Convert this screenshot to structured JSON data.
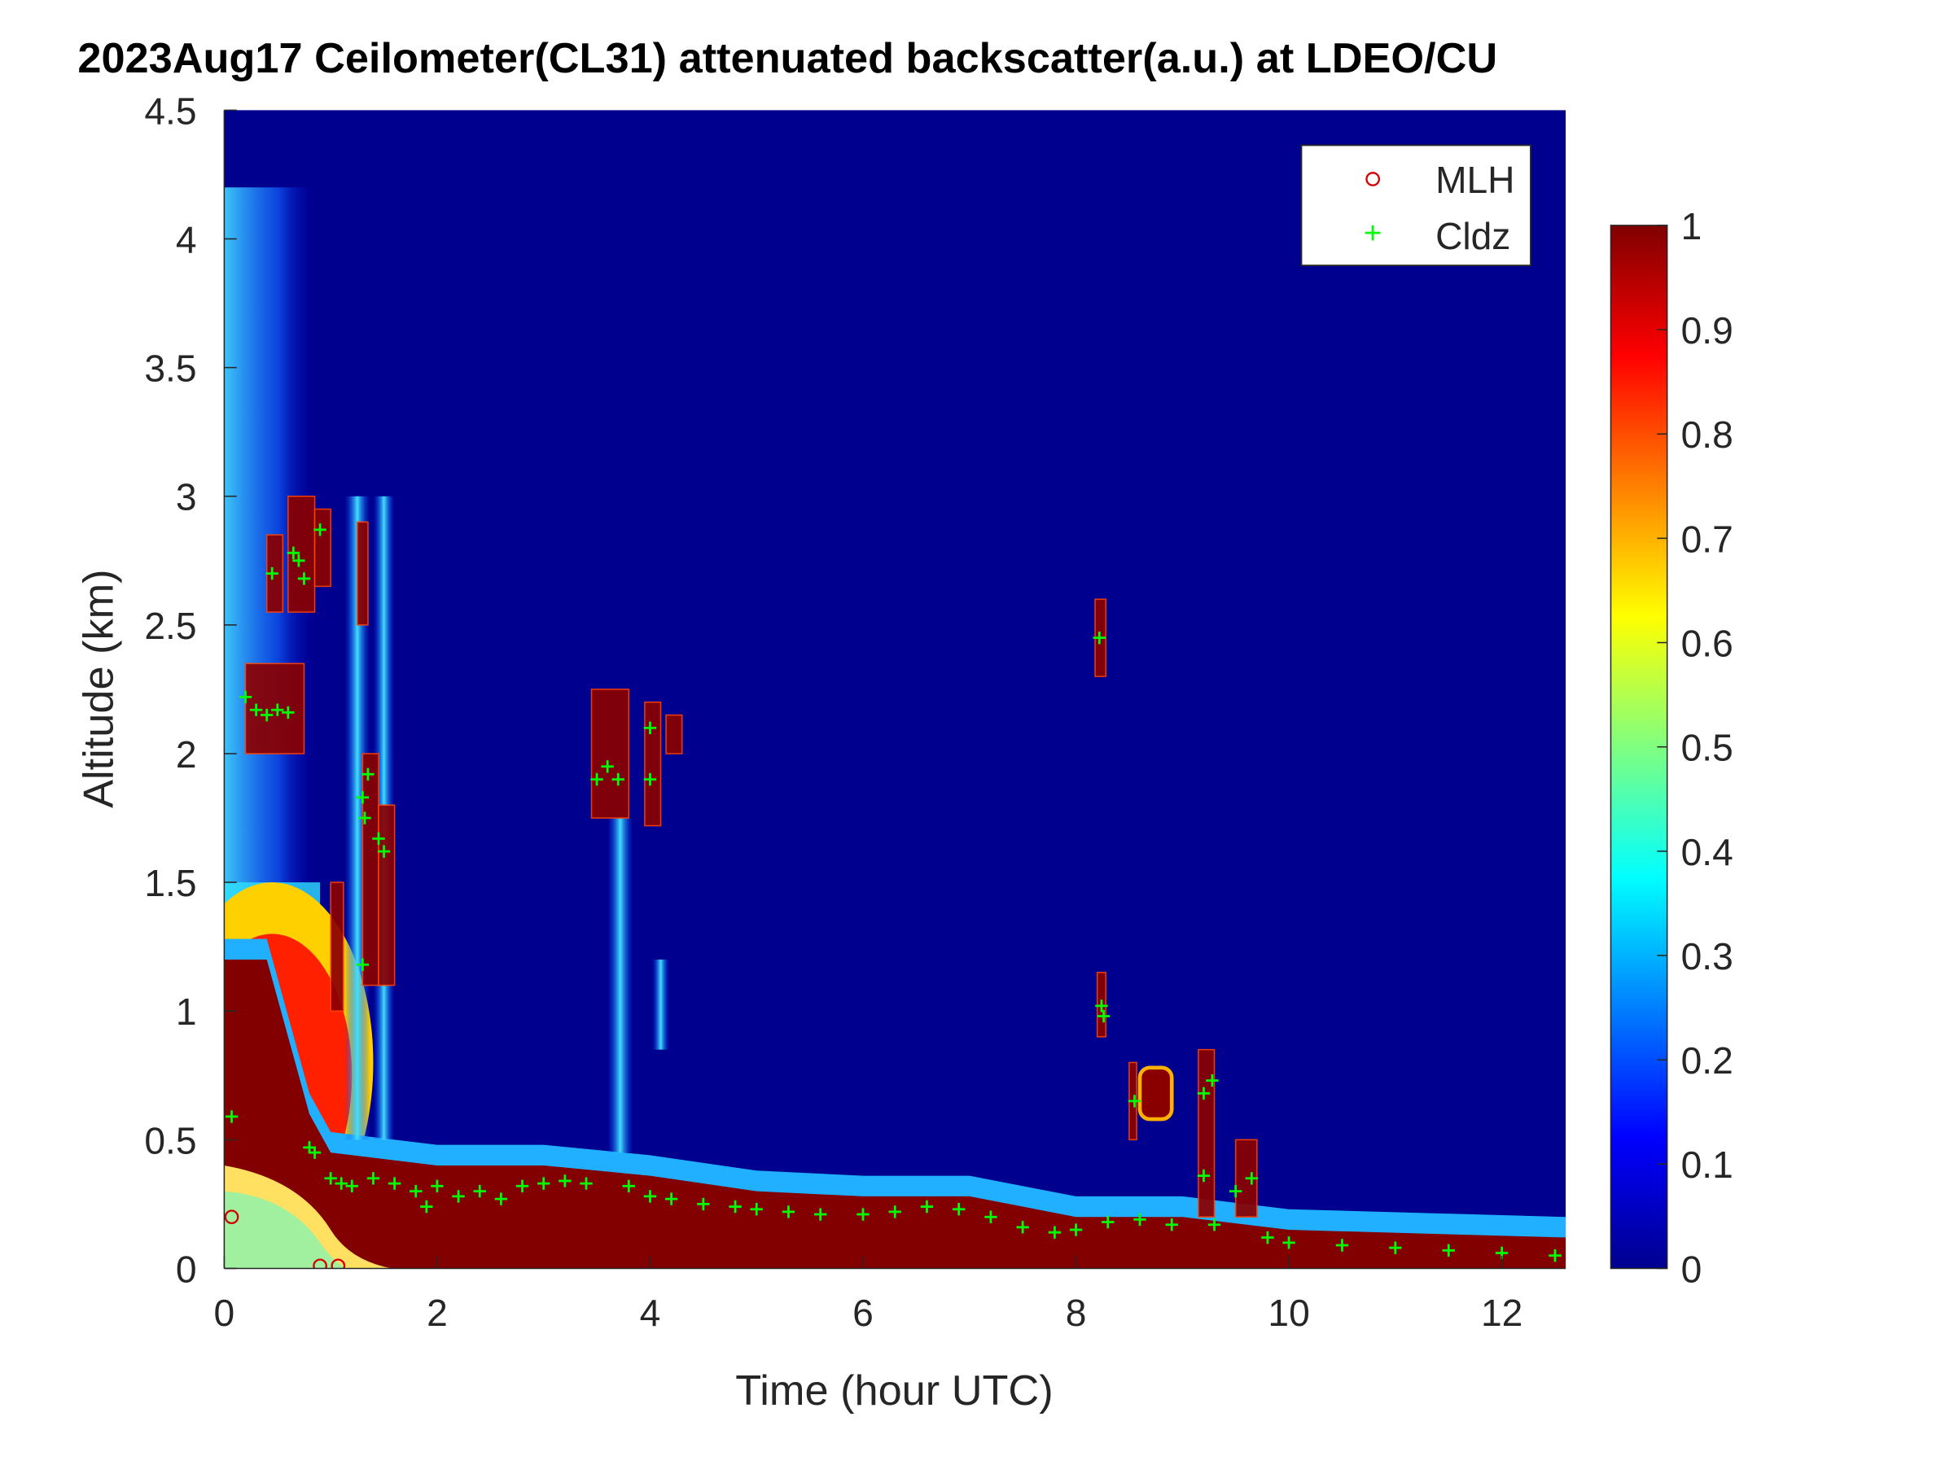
{
  "chart_data": {
    "type": "heatmap",
    "title": "2023Aug17 Ceilometer(CL31) attenuated backscatter(a.u.) at LDEO/CU",
    "xlabel": "Time (hour UTC)",
    "ylabel": "Altitude (km)",
    "xlim": [
      0,
      12.6
    ],
    "ylim": [
      0,
      4.5
    ],
    "xticks": [
      "0",
      "2",
      "4",
      "6",
      "8",
      "10",
      "12"
    ],
    "xtick_values": [
      0,
      2,
      4,
      6,
      8,
      10,
      12
    ],
    "yticks": [
      "0",
      "0.5",
      "1",
      "1.5",
      "2",
      "2.5",
      "3",
      "3.5",
      "4",
      "4.5"
    ],
    "ytick_values": [
      0,
      0.5,
      1,
      1.5,
      2,
      2.5,
      3,
      3.5,
      4,
      4.5
    ],
    "colormap": "jet",
    "colorbar": {
      "range": [
        0,
        1
      ],
      "ticks": [
        "0",
        "0.1",
        "0.2",
        "0.3",
        "0.4",
        "0.5",
        "0.6",
        "0.7",
        "0.8",
        "0.9",
        "1"
      ],
      "tick_values": [
        0,
        0.1,
        0.2,
        0.3,
        0.4,
        0.5,
        0.6,
        0.7,
        0.8,
        0.9,
        1
      ]
    },
    "legend": {
      "placement": "top-right",
      "entries": [
        "MLH",
        "Cldz"
      ]
    },
    "colors": {
      "MLH": "#d40000",
      "Cldz": "#00ff00",
      "background": "#00008f"
    },
    "series": [
      {
        "name": "MLH",
        "marker": "circle",
        "points": [
          [
            0.07,
            0.2
          ],
          [
            0.9,
            0.01
          ],
          [
            1.07,
            0.01
          ]
        ]
      },
      {
        "name": "Cldz",
        "marker": "plus",
        "points": [
          [
            0.07,
            0.59
          ],
          [
            0.2,
            2.22
          ],
          [
            0.3,
            2.17
          ],
          [
            0.4,
            2.15
          ],
          [
            0.5,
            2.17
          ],
          [
            0.6,
            2.16
          ],
          [
            0.45,
            2.7
          ],
          [
            0.65,
            2.78
          ],
          [
            0.7,
            2.75
          ],
          [
            0.75,
            2.68
          ],
          [
            0.9,
            2.87
          ],
          [
            0.8,
            0.47
          ],
          [
            0.85,
            0.45
          ],
          [
            1.0,
            0.35
          ],
          [
            1.1,
            0.33
          ],
          [
            1.2,
            0.32
          ],
          [
            1.3,
            1.83
          ],
          [
            1.32,
            1.75
          ],
          [
            1.35,
            1.92
          ],
          [
            1.45,
            1.67
          ],
          [
            1.5,
            1.62
          ],
          [
            1.3,
            1.18
          ],
          [
            1.4,
            0.35
          ],
          [
            1.6,
            0.33
          ],
          [
            1.8,
            0.3
          ],
          [
            1.9,
            0.24
          ],
          [
            2.0,
            0.32
          ],
          [
            2.2,
            0.28
          ],
          [
            2.4,
            0.3
          ],
          [
            2.6,
            0.27
          ],
          [
            2.8,
            0.32
          ],
          [
            3.0,
            0.33
          ],
          [
            3.2,
            0.34
          ],
          [
            3.4,
            0.33
          ],
          [
            3.5,
            1.9
          ],
          [
            3.6,
            1.95
          ],
          [
            3.7,
            1.9
          ],
          [
            3.8,
            0.32
          ],
          [
            4.0,
            0.28
          ],
          [
            4.0,
            2.1
          ],
          [
            4.0,
            1.9
          ],
          [
            4.2,
            0.27
          ],
          [
            4.5,
            0.25
          ],
          [
            4.8,
            0.24
          ],
          [
            5.0,
            0.23
          ],
          [
            5.3,
            0.22
          ],
          [
            5.6,
            0.21
          ],
          [
            6.0,
            0.21
          ],
          [
            6.3,
            0.22
          ],
          [
            6.6,
            0.24
          ],
          [
            6.9,
            0.23
          ],
          [
            7.2,
            0.2
          ],
          [
            7.5,
            0.16
          ],
          [
            7.8,
            0.14
          ],
          [
            8.0,
            0.15
          ],
          [
            8.22,
            2.45
          ],
          [
            8.24,
            1.02
          ],
          [
            8.26,
            0.98
          ],
          [
            8.3,
            0.18
          ],
          [
            8.55,
            0.65
          ],
          [
            8.6,
            0.19
          ],
          [
            8.9,
            0.17
          ],
          [
            9.2,
            0.68
          ],
          [
            9.28,
            0.73
          ],
          [
            9.2,
            0.36
          ],
          [
            9.3,
            0.17
          ],
          [
            9.5,
            0.3
          ],
          [
            9.65,
            0.35
          ],
          [
            9.8,
            0.12
          ],
          [
            10.0,
            0.1
          ],
          [
            10.5,
            0.09
          ],
          [
            11.0,
            0.08
          ],
          [
            11.5,
            0.07
          ],
          [
            12.0,
            0.06
          ],
          [
            12.5,
            0.05
          ]
        ]
      }
    ],
    "boundary_layer_top_km": [
      [
        0,
        1.2
      ],
      [
        0.4,
        1.2
      ],
      [
        0.6,
        0.9
      ],
      [
        0.8,
        0.6
      ],
      [
        1,
        0.45
      ],
      [
        2,
        0.4
      ],
      [
        3,
        0.4
      ],
      [
        4,
        0.36
      ],
      [
        5,
        0.3
      ],
      [
        6,
        0.28
      ],
      [
        7,
        0.28
      ],
      [
        8,
        0.2
      ],
      [
        9,
        0.2
      ],
      [
        10,
        0.15
      ],
      [
        12.6,
        0.12
      ]
    ]
  }
}
